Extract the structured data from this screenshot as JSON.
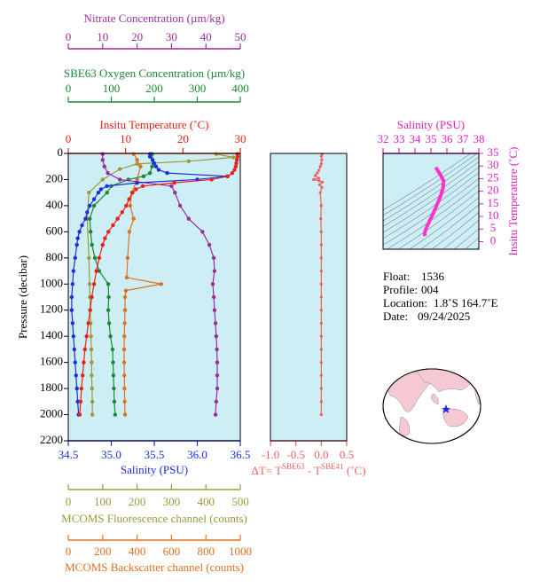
{
  "chart_data": [
    {
      "type": "line",
      "y_label": "Pressure (decibar)",
      "ylim": [
        0,
        2200
      ],
      "y_reversed": true,
      "yticks": [
        0,
        200,
        400,
        600,
        800,
        1000,
        1200,
        1400,
        1600,
        1800,
        2000,
        2200
      ],
      "background": "#cdeef5",
      "x_axes": [
        {
          "label": "Nitrate Concentration (µm/kg)",
          "color": "#9b2d9b",
          "xlim": [
            0,
            50
          ],
          "xticks": [
            0,
            10,
            20,
            30,
            40,
            50
          ]
        },
        {
          "label": "SBE63 Oxygen Concentration (µm/kg)",
          "color": "#178a35",
          "xlim": [
            0,
            400
          ],
          "xticks": [
            0,
            100,
            200,
            300,
            400
          ]
        },
        {
          "label": "Insitu Temperature (˚C)",
          "color": "#e8201a",
          "xlim": [
            0,
            30
          ],
          "xticks": [
            0,
            10,
            20,
            30
          ]
        },
        {
          "label": "Salinity (PSU)",
          "color": "#1a2ee0",
          "xlim": [
            34.5,
            36.5
          ],
          "xticks": [
            34.5,
            {
              "value": 35,
              "label": "35.0"
            },
            35.5,
            {
              "value": 36,
              "label": "36.0"
            },
            36.5
          ]
        },
        {
          "label": "MCOMS Fluorescence channel (counts)",
          "color": "#9a9a3a",
          "xlim": [
            0,
            500
          ],
          "xticks": [
            0,
            100,
            200,
            300,
            400,
            500
          ]
        },
        {
          "label": "MCOMS Backscatter channel (counts)",
          "color": "#e07020",
          "xlim": [
            0,
            1000
          ],
          "xticks": [
            0,
            200,
            400,
            600,
            800,
            1000
          ]
        }
      ],
      "series": [
        {
          "x_axis": 5,
          "color": "#e07020",
          "y": [
            5,
            50,
            100,
            200,
            300,
            400,
            500,
            600,
            800,
            950,
            1000,
            1050,
            1100,
            1200,
            1300,
            1400,
            1500,
            1600,
            1700,
            1800,
            1900,
            2000
          ],
          "x": [
            380,
            400,
            420,
            400,
            370,
            360,
            380,
            355,
            345,
            340,
            540,
            335,
            330,
            330,
            328,
            326,
            325,
            325,
            326,
            327,
            328,
            330
          ]
        },
        {
          "x_axis": 4,
          "color": "#9a9a3a",
          "y": [
            5,
            30,
            60,
            80,
            120,
            200,
            300,
            500,
            800,
            1000,
            1100,
            1200,
            1300,
            1400,
            1500,
            1600,
            1700,
            1800,
            1900,
            2000
          ],
          "x": [
            430,
            480,
            350,
            200,
            150,
            100,
            60,
            55,
            60,
            62,
            63,
            64,
            65,
            66,
            67,
            68,
            68,
            69,
            70,
            70
          ]
        },
        {
          "x_axis": 1,
          "color": "#178a35",
          "y": [
            5,
            50,
            100,
            150,
            175,
            200,
            250,
            300,
            400,
            500,
            600,
            700,
            800,
            900,
            1000,
            1100,
            1200,
            1300,
            1400,
            1500,
            1600,
            1700,
            1800,
            1900,
            2000
          ],
          "x": [
            195,
            196,
            195,
            190,
            175,
            140,
            100,
            90,
            60,
            50,
            52,
            55,
            62,
            72,
            93,
            94,
            93,
            95,
            98,
            103,
            104,
            105,
            106,
            107,
            109
          ]
        },
        {
          "x_axis": 0,
          "color": "#9b2d9b",
          "y": [
            5,
            50,
            100,
            150,
            200,
            250,
            300,
            400,
            500,
            600,
            700,
            800,
            900,
            1000,
            1100,
            1200,
            1300,
            1400,
            1500,
            1600,
            1700,
            1800,
            1900,
            2000
          ],
          "x": [
            10,
            10,
            10.5,
            11.5,
            15,
            30,
            31,
            32.5,
            35,
            39,
            41,
            42.3,
            42.5,
            42,
            42.3,
            42.5,
            42.8,
            43,
            43.2,
            43.3,
            43.3,
            43.3,
            43,
            42.8
          ]
        },
        {
          "x_axis": 3,
          "color": "#1a2ee0",
          "y": [
            5,
            25,
            50,
            75,
            100,
            125,
            150,
            175,
            200,
            225,
            250,
            275,
            300,
            350,
            400,
            450,
            500,
            550,
            600,
            650,
            700,
            800,
            900,
            1000,
            1100,
            1200,
            1300,
            1400,
            1500,
            1600,
            1700,
            1800,
            1900,
            2000
          ],
          "x": [
            35.45,
            35.45,
            35.48,
            35.5,
            35.52,
            35.55,
            35.65,
            36.35,
            36.0,
            35.3,
            34.95,
            34.88,
            34.85,
            34.8,
            34.75,
            34.72,
            34.7,
            34.66,
            34.63,
            34.61,
            34.6,
            34.58,
            34.56,
            34.55,
            34.54,
            34.54,
            34.55,
            34.56,
            34.57,
            34.58,
            34.59,
            34.6,
            34.61,
            34.62
          ]
        },
        {
          "x_axis": 2,
          "color": "#e8201a",
          "y": [
            5,
            25,
            50,
            75,
            100,
            125,
            150,
            175,
            200,
            225,
            250,
            275,
            300,
            350,
            400,
            450,
            500,
            550,
            600,
            650,
            700,
            800,
            900,
            1000,
            1100,
            1200,
            1300,
            1400,
            1500,
            1600,
            1700,
            1800,
            1900,
            2000
          ],
          "x": [
            29.5,
            29.5,
            29.4,
            29.3,
            29.2,
            29.0,
            28.6,
            27.8,
            25.0,
            18.5,
            13.0,
            11.8,
            11.2,
            10.6,
            10.1,
            9.4,
            8.6,
            7.8,
            7.0,
            6.4,
            6.0,
            5.4,
            4.9,
            4.5,
            4.1,
            3.8,
            3.5,
            3.2,
            2.9,
            2.7,
            2.5,
            2.3,
            2.15,
            2.0
          ]
        }
      ]
    },
    {
      "type": "line",
      "ylim": [
        0,
        2200
      ],
      "y_reversed": true,
      "background": "#cdeef5",
      "x_axes": [
        {
          "label": [
            "ΔT= T",
            "SBE63",
            " - T",
            "SBE41",
            " (˚C)"
          ],
          "color": "#f06060",
          "xlim": [
            -1,
            0.5
          ],
          "xticks": [
            {
              "value": -1,
              "label": "-1.0"
            },
            -0.5,
            {
              "value": 0,
              "label": "0.0"
            },
            0.5
          ]
        }
      ],
      "series": [
        {
          "x_axis": 0,
          "color": "#f06060",
          "y": [
            5,
            20,
            50,
            80,
            100,
            130,
            150,
            170,
            190,
            200,
            210,
            220,
            240,
            260,
            300,
            400,
            500,
            600,
            700,
            800,
            900,
            1000,
            1100,
            1200,
            1300,
            1400,
            1500,
            1600,
            1700,
            1800,
            1900,
            2000
          ],
          "x": [
            0.02,
            0.0,
            0.01,
            0.0,
            -0.02,
            -0.05,
            -0.08,
            -0.12,
            -0.05,
            -0.15,
            -0.04,
            0.02,
            -0.03,
            0.01,
            -0.02,
            0.0,
            -0.01,
            0,
            0,
            0,
            0,
            0,
            0,
            0,
            0,
            0,
            0,
            0,
            0,
            0,
            0,
            0
          ]
        }
      ]
    },
    {
      "type": "line",
      "y_label": "Insitu Temperature (˚C)",
      "y_color": "#e020c0",
      "ylim": [
        -3,
        35
      ],
      "yticks": [
        0,
        5,
        10,
        15,
        20,
        25,
        30,
        35
      ],
      "background": "#cdeef5",
      "x_axes": [
        {
          "label": "Salinity (PSU)",
          "color": "#e020c0",
          "xlim": [
            32,
            38
          ],
          "xticks": [
            32,
            33,
            34,
            35,
            36,
            37,
            38
          ]
        }
      ],
      "series": [
        {
          "x_axis": 0,
          "color": "#ff33cc",
          "x": [
            35.3,
            35.35,
            35.45,
            35.6,
            35.8,
            35.75,
            35.6,
            35.4,
            35.2,
            35.05,
            34.9,
            34.75,
            34.65,
            34.6,
            34.62
          ],
          "y": [
            29.5,
            29,
            28,
            26.5,
            24,
            21,
            18,
            15,
            12,
            10,
            8,
            6,
            4.5,
            3,
            2.2
          ]
        }
      ]
    }
  ],
  "info": [
    {
      "label": "Float:",
      "value": "1536"
    },
    {
      "label": "Profile:",
      "value": "004"
    },
    {
      "label": "Location:",
      "value": "1.8˚S  164.7˚E"
    },
    {
      "label": "Date:",
      "value": "09/24/2025"
    }
  ]
}
